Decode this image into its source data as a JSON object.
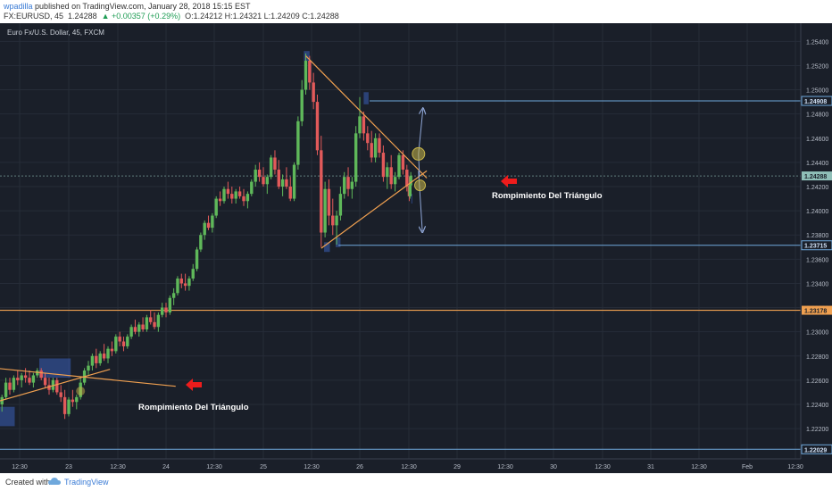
{
  "header": {
    "author": "wpadilla",
    "published": "published on TradingView.com, January 28, 2018 15:15 EST",
    "symbol": "FX:EURUSD, 45",
    "price": "1.24288",
    "change": "▲ +0.00357 (+0.29%)",
    "ohlc": "O:1.24212 H:1.24321 L:1.24209 C:1.24288"
  },
  "legend": "Euro Fx/U.S. Dollar, 45, FXCM",
  "footer": {
    "created_with": "Created with",
    "brand": "TradingView"
  },
  "colors": {
    "background": "#1a1f29",
    "up": "#5fb85a",
    "down": "#e25a5a",
    "trendline": "#f0a050",
    "projection": "#8fa6d6",
    "arrow": "#ee1c1c",
    "label_bg_blue": "#6fa8dc",
    "label_bg_orange": "#f0a050",
    "label_bg_teal": "#8fbfb8"
  },
  "chart_data": {
    "type": "candlestick",
    "title": "Euro Fx/U.S. Dollar, 45, FXCM",
    "ylim": [
      1.2195,
      1.2555
    ],
    "y_ticks": [
      "1.25400",
      "1.25200",
      "1.25000",
      "1.24800",
      "1.24600",
      "1.24400",
      "1.24200",
      "1.24000",
      "1.23800",
      "1.23600",
      "1.23400",
      "1.23200",
      "1.23000",
      "1.22800",
      "1.22600",
      "1.22400",
      "1.22200"
    ],
    "y_tick_values": [
      1.254,
      1.252,
      1.25,
      1.248,
      1.246,
      1.244,
      1.242,
      1.24,
      1.238,
      1.236,
      1.234,
      1.232,
      1.23,
      1.228,
      1.226,
      1.224,
      1.222
    ],
    "x_ticks": [
      "12:30",
      "23",
      "12:30",
      "24",
      "12:30",
      "25",
      "12:30",
      "26",
      "12:30",
      "29",
      "12:30",
      "30",
      "12:30",
      "31",
      "12:30",
      "Feb",
      "12:30"
    ],
    "x_tick_values": [
      22.5,
      23,
      23.5,
      24,
      24.5,
      25,
      25.5,
      26,
      26.5,
      29,
      29.5,
      30,
      30.5,
      31,
      31.5,
      32,
      32.5
    ],
    "price_labels": [
      {
        "text": "1.24908",
        "value": 1.24908,
        "style": "blue"
      },
      {
        "text": "1.24288",
        "value": 1.24288,
        "style": "teal"
      },
      {
        "text": "1.23715",
        "value": 1.23715,
        "style": "blue"
      },
      {
        "text": "1.23178",
        "value": 1.23178,
        "style": "orange"
      },
      {
        "text": "1.22029",
        "value": 1.22029,
        "style": "blue"
      }
    ],
    "annotations": [
      "Rompimiento Del Triángulo",
      "Rompimiento Del Triángulo"
    ],
    "candles": [
      [
        22.0,
        1.2236,
        1.2238,
        1.2228,
        1.2232
      ],
      [
        22.04,
        1.2232,
        1.225,
        1.223,
        1.2248
      ],
      [
        22.08,
        1.2248,
        1.2262,
        1.2244,
        1.2258
      ],
      [
        22.12,
        1.2258,
        1.2262,
        1.2246,
        1.225
      ],
      [
        22.16,
        1.225,
        1.2262,
        1.224,
        1.2244
      ],
      [
        22.2,
        1.2244,
        1.2256,
        1.2238,
        1.2252
      ],
      [
        22.24,
        1.2252,
        1.2258,
        1.224,
        1.2246
      ],
      [
        22.28,
        1.2246,
        1.2254,
        1.2236,
        1.224
      ],
      [
        22.32,
        1.224,
        1.2248,
        1.2234,
        1.2246
      ],
      [
        22.36,
        1.2246,
        1.2262,
        1.2244,
        1.2258
      ],
      [
        22.4,
        1.2258,
        1.2262,
        1.2248,
        1.2252
      ],
      [
        22.44,
        1.2252,
        1.2264,
        1.225,
        1.2262
      ],
      [
        22.48,
        1.2262,
        1.2268,
        1.2256,
        1.226
      ],
      [
        22.52,
        1.226,
        1.2266,
        1.2254,
        1.2264
      ],
      [
        22.56,
        1.2264,
        1.227,
        1.2258,
        1.2262
      ],
      [
        22.6,
        1.2262,
        1.2268,
        1.2256,
        1.2258
      ],
      [
        22.64,
        1.2258,
        1.2266,
        1.2254,
        1.2264
      ],
      [
        22.68,
        1.2264,
        1.227,
        1.2262,
        1.2268
      ],
      [
        22.72,
        1.2268,
        1.227,
        1.226,
        1.2262
      ],
      [
        22.76,
        1.2262,
        1.2266,
        1.2254,
        1.2256
      ],
      [
        22.8,
        1.2256,
        1.2262,
        1.2248,
        1.2252
      ],
      [
        22.84,
        1.2252,
        1.2262,
        1.225,
        1.226
      ],
      [
        22.88,
        1.226,
        1.2262,
        1.2248,
        1.225
      ],
      [
        22.92,
        1.225,
        1.2256,
        1.2242,
        1.2246
      ],
      [
        22.96,
        1.2246,
        1.2252,
        1.2228,
        1.2232
      ],
      [
        23.0,
        1.2232,
        1.2246,
        1.223,
        1.2244
      ],
      [
        23.04,
        1.2244,
        1.2252,
        1.2238,
        1.2242
      ],
      [
        23.08,
        1.2242,
        1.2248,
        1.2236,
        1.2246
      ],
      [
        23.12,
        1.2246,
        1.2262,
        1.2244,
        1.2258
      ],
      [
        23.16,
        1.2258,
        1.227,
        1.2256,
        1.2268
      ],
      [
        23.2,
        1.2268,
        1.2276,
        1.2264,
        1.2272
      ],
      [
        23.24,
        1.2272,
        1.2282,
        1.2268,
        1.228
      ],
      [
        23.28,
        1.228,
        1.2286,
        1.227,
        1.2274
      ],
      [
        23.32,
        1.2274,
        1.2284,
        1.2272,
        1.2282
      ],
      [
        23.36,
        1.2282,
        1.229,
        1.2276,
        1.2278
      ],
      [
        23.4,
        1.2278,
        1.2288,
        1.2274,
        1.2286
      ],
      [
        23.44,
        1.2286,
        1.2292,
        1.228,
        1.2284
      ],
      [
        23.48,
        1.2284,
        1.2298,
        1.2282,
        1.2296
      ],
      [
        23.52,
        1.2296,
        1.23,
        1.2288,
        1.2292
      ],
      [
        23.56,
        1.2292,
        1.2296,
        1.2284,
        1.2288
      ],
      [
        23.6,
        1.2288,
        1.2298,
        1.2286,
        1.2296
      ],
      [
        23.64,
        1.2296,
        1.2306,
        1.2294,
        1.2304
      ],
      [
        23.68,
        1.2304,
        1.231,
        1.2298,
        1.23
      ],
      [
        23.72,
        1.23,
        1.2308,
        1.2296,
        1.2306
      ],
      [
        23.76,
        1.2306,
        1.2312,
        1.23,
        1.2302
      ],
      [
        23.8,
        1.2302,
        1.2314,
        1.23,
        1.2312
      ],
      [
        23.84,
        1.2312,
        1.2318,
        1.2306,
        1.2308
      ],
      [
        23.88,
        1.2308,
        1.2316,
        1.2302,
        1.2304
      ],
      [
        23.92,
        1.2304,
        1.2316,
        1.23,
        1.2314
      ],
      [
        23.96,
        1.2314,
        1.2324,
        1.2312,
        1.232
      ],
      [
        24.0,
        1.232,
        1.2324,
        1.2312,
        1.2316
      ],
      [
        24.04,
        1.2316,
        1.233,
        1.2314,
        1.2328
      ],
      [
        24.08,
        1.2328,
        1.2336,
        1.2322,
        1.2332
      ],
      [
        24.12,
        1.2332,
        1.2346,
        1.233,
        1.2344
      ],
      [
        24.16,
        1.2344,
        1.2348,
        1.2336,
        1.234
      ],
      [
        24.2,
        1.234,
        1.2348,
        1.2334,
        1.2338
      ],
      [
        24.24,
        1.2338,
        1.2346,
        1.2334,
        1.2344
      ],
      [
        24.28,
        1.2344,
        1.2356,
        1.2342,
        1.2352
      ],
      [
        24.32,
        1.2352,
        1.237,
        1.235,
        1.2368
      ],
      [
        24.36,
        1.2368,
        1.2382,
        1.2366,
        1.238
      ],
      [
        24.4,
        1.238,
        1.2392,
        1.2376,
        1.239
      ],
      [
        24.44,
        1.239,
        1.2396,
        1.2384,
        1.2386
      ],
      [
        24.48,
        1.2386,
        1.2398,
        1.2382,
        1.2396
      ],
      [
        24.52,
        1.2396,
        1.2412,
        1.2394,
        1.241
      ],
      [
        24.56,
        1.241,
        1.2416,
        1.2404,
        1.2408
      ],
      [
        24.6,
        1.2408,
        1.242,
        1.2406,
        1.2418
      ],
      [
        24.64,
        1.2418,
        1.2424,
        1.241,
        1.2414
      ],
      [
        24.68,
        1.2414,
        1.242,
        1.2406,
        1.241
      ],
      [
        24.72,
        1.241,
        1.2418,
        1.2406,
        1.2416
      ],
      [
        24.76,
        1.2416,
        1.242,
        1.241,
        1.2412
      ],
      [
        24.8,
        1.2412,
        1.2418,
        1.2404,
        1.2408
      ],
      [
        24.84,
        1.2408,
        1.2416,
        1.2402,
        1.2414
      ],
      [
        24.88,
        1.2414,
        1.2426,
        1.2412,
        1.2424
      ],
      [
        24.92,
        1.2424,
        1.2438,
        1.242,
        1.2434
      ],
      [
        24.96,
        1.2434,
        1.244,
        1.2424,
        1.2428
      ],
      [
        25.0,
        1.2428,
        1.2436,
        1.242,
        1.2422
      ],
      [
        25.04,
        1.2422,
        1.243,
        1.2414,
        1.2428
      ],
      [
        25.08,
        1.2428,
        1.2446,
        1.2426,
        1.2444
      ],
      [
        25.12,
        1.2444,
        1.245,
        1.243,
        1.2434
      ],
      [
        25.16,
        1.2434,
        1.2442,
        1.2418,
        1.242
      ],
      [
        25.2,
        1.242,
        1.243,
        1.2412,
        1.2426
      ],
      [
        25.24,
        1.2426,
        1.2436,
        1.2418,
        1.242
      ],
      [
        25.28,
        1.242,
        1.2428,
        1.2408,
        1.241
      ],
      [
        25.32,
        1.241,
        1.244,
        1.2408,
        1.2438
      ],
      [
        25.36,
        1.2438,
        1.2478,
        1.2434,
        1.2474
      ],
      [
        25.4,
        1.2474,
        1.2508,
        1.247,
        1.25
      ],
      [
        25.44,
        1.25,
        1.253,
        1.2496,
        1.2524
      ],
      [
        25.48,
        1.2524,
        1.2528,
        1.25,
        1.2506
      ],
      [
        25.52,
        1.2506,
        1.2514,
        1.2484,
        1.249
      ],
      [
        25.56,
        1.249,
        1.2496,
        1.2446,
        1.245
      ],
      [
        25.6,
        1.245,
        1.2462,
        1.237,
        1.2382
      ],
      [
        25.64,
        1.2382,
        1.2424,
        1.2378,
        1.2418
      ],
      [
        25.68,
        1.2418,
        1.2426,
        1.2388,
        1.2396
      ],
      [
        25.72,
        1.2396,
        1.241,
        1.238,
        1.2388
      ],
      [
        25.76,
        1.2388,
        1.24,
        1.2372,
        1.2396
      ],
      [
        25.8,
        1.2396,
        1.242,
        1.2392,
        1.2414
      ],
      [
        25.84,
        1.2414,
        1.2432,
        1.241,
        1.2428
      ],
      [
        25.88,
        1.2428,
        1.2436,
        1.2412,
        1.2418
      ],
      [
        25.92,
        1.2418,
        1.2428,
        1.241,
        1.2424
      ],
      [
        25.96,
        1.2424,
        1.247,
        1.242,
        1.2464
      ],
      [
        26.0,
        1.2464,
        1.2494,
        1.246,
        1.2478
      ],
      [
        26.04,
        1.2478,
        1.2482,
        1.2458,
        1.2464
      ],
      [
        26.08,
        1.2464,
        1.247,
        1.245,
        1.2456
      ],
      [
        26.12,
        1.2456,
        1.2466,
        1.244,
        1.2444
      ],
      [
        26.16,
        1.2444,
        1.2464,
        1.244,
        1.246
      ],
      [
        26.2,
        1.246,
        1.2464,
        1.2444,
        1.2448
      ],
      [
        26.24,
        1.2448,
        1.2454,
        1.2424,
        1.2428
      ],
      [
        26.28,
        1.2428,
        1.244,
        1.2418,
        1.2436
      ],
      [
        26.32,
        1.2436,
        1.2446,
        1.2418,
        1.2422
      ],
      [
        26.36,
        1.2422,
        1.2432,
        1.2416,
        1.2428
      ],
      [
        26.4,
        1.2428,
        1.2448,
        1.2426,
        1.2446
      ],
      [
        26.44,
        1.2446,
        1.245,
        1.243,
        1.2434
      ],
      [
        26.48,
        1.2434,
        1.2438,
        1.2416,
        1.242
      ],
      [
        26.52,
        1.242,
        1.2428,
        1.2408,
        1.2412
      ],
      [
        26.56,
        1.2412,
        1.2428,
        1.241,
        1.2421
      ],
      [
        26.6,
        1.2421,
        1.2432,
        1.242,
        1.2429
      ]
    ]
  }
}
